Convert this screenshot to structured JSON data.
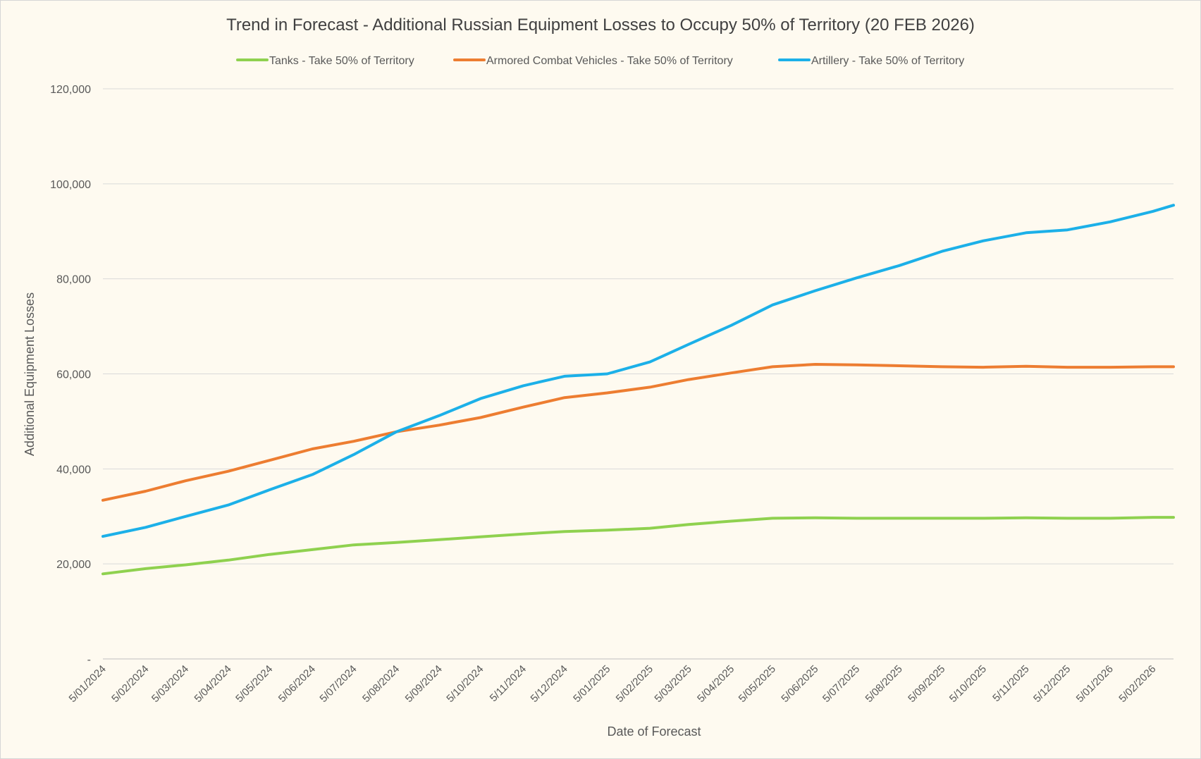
{
  "chart_data": {
    "type": "line",
    "title": "Trend in Forecast - Additional Russian Equipment Losses to Occupy 50% of Territory (20 FEB 2026)",
    "xlabel": "Date of Forecast",
    "ylabel": "Additional Equipment Losses",
    "ylim": [
      0,
      120000
    ],
    "yticks": [
      {
        "value": 0,
        "label": "-"
      },
      {
        "value": 20000,
        "label": "20,000"
      },
      {
        "value": 40000,
        "label": "40,000"
      },
      {
        "value": 60000,
        "label": "60,000"
      },
      {
        "value": 80000,
        "label": "80,000"
      },
      {
        "value": 100000,
        "label": "100,000"
      },
      {
        "value": 120000,
        "label": "120,000"
      }
    ],
    "xlim": [
      "2024-01-05",
      "2026-02-20"
    ],
    "x_tick_labels": [
      "5/01/2024",
      "5/02/2024",
      "5/03/2024",
      "5/04/2024",
      "5/05/2024",
      "5/06/2024",
      "5/07/2024",
      "5/08/2024",
      "5/09/2024",
      "5/10/2024",
      "5/11/2024",
      "5/12/2024",
      "5/01/2025",
      "5/02/2025",
      "5/03/2025",
      "5/04/2025",
      "5/05/2025",
      "5/06/2025",
      "5/07/2025",
      "5/08/2025",
      "5/09/2025",
      "5/10/2025",
      "5/11/2025",
      "5/12/2025",
      "5/01/2026",
      "5/02/2026"
    ],
    "x_tick_dates": [
      "2024-01-05",
      "2024-02-05",
      "2024-03-05",
      "2024-04-05",
      "2024-05-05",
      "2024-06-05",
      "2024-07-05",
      "2024-08-05",
      "2024-09-05",
      "2024-10-05",
      "2024-11-05",
      "2024-12-05",
      "2025-01-05",
      "2025-02-05",
      "2025-03-05",
      "2025-04-05",
      "2025-05-05",
      "2025-06-05",
      "2025-07-05",
      "2025-08-05",
      "2025-09-05",
      "2025-10-05",
      "2025-11-05",
      "2025-12-05",
      "2026-01-05",
      "2026-02-05"
    ],
    "grid": true,
    "legend_position": "top-center",
    "series": [
      {
        "name": "Tanks - Take 50% of Territory",
        "color": "#8fd14f",
        "points": [
          [
            "2024-01-05",
            17900
          ],
          [
            "2024-02-05",
            19000
          ],
          [
            "2024-03-05",
            19800
          ],
          [
            "2024-04-05",
            20800
          ],
          [
            "2024-05-05",
            22000
          ],
          [
            "2024-06-05",
            23000
          ],
          [
            "2024-07-05",
            24000
          ],
          [
            "2024-08-05",
            24500
          ],
          [
            "2024-09-05",
            25100
          ],
          [
            "2024-10-05",
            25700
          ],
          [
            "2024-11-05",
            26300
          ],
          [
            "2024-12-05",
            26800
          ],
          [
            "2025-01-05",
            27100
          ],
          [
            "2025-02-05",
            27500
          ],
          [
            "2025-03-05",
            28300
          ],
          [
            "2025-04-05",
            29000
          ],
          [
            "2025-05-05",
            29600
          ],
          [
            "2025-06-05",
            29700
          ],
          [
            "2025-07-05",
            29600
          ],
          [
            "2025-08-05",
            29600
          ],
          [
            "2025-09-05",
            29600
          ],
          [
            "2025-10-05",
            29600
          ],
          [
            "2025-11-05",
            29700
          ],
          [
            "2025-12-05",
            29600
          ],
          [
            "2026-01-05",
            29600
          ],
          [
            "2026-02-05",
            29800
          ],
          [
            "2026-02-20",
            29800
          ]
        ]
      },
      {
        "name": "Armored Combat Vehicles - Take 50% of Territory",
        "color": "#ed7d31",
        "points": [
          [
            "2024-01-05",
            33400
          ],
          [
            "2024-02-05",
            35300
          ],
          [
            "2024-03-05",
            37500
          ],
          [
            "2024-04-05",
            39500
          ],
          [
            "2024-05-05",
            41800
          ],
          [
            "2024-06-05",
            44200
          ],
          [
            "2024-07-05",
            45800
          ],
          [
            "2024-08-05",
            47800
          ],
          [
            "2024-09-05",
            49200
          ],
          [
            "2024-10-05",
            50800
          ],
          [
            "2024-11-05",
            53000
          ],
          [
            "2024-12-05",
            55000
          ],
          [
            "2025-01-05",
            56000
          ],
          [
            "2025-02-05",
            57200
          ],
          [
            "2025-03-05",
            58800
          ],
          [
            "2025-04-05",
            60200
          ],
          [
            "2025-05-05",
            61500
          ],
          [
            "2025-06-05",
            62000
          ],
          [
            "2025-07-05",
            61900
          ],
          [
            "2025-08-05",
            61700
          ],
          [
            "2025-09-05",
            61500
          ],
          [
            "2025-10-05",
            61400
          ],
          [
            "2025-11-05",
            61600
          ],
          [
            "2025-12-05",
            61400
          ],
          [
            "2026-01-05",
            61400
          ],
          [
            "2026-02-05",
            61500
          ],
          [
            "2026-02-20",
            61500
          ]
        ]
      },
      {
        "name": "Artillery - Take 50% of Territory",
        "color": "#1cb0e8",
        "points": [
          [
            "2024-01-05",
            25800
          ],
          [
            "2024-02-05",
            27700
          ],
          [
            "2024-03-05",
            30000
          ],
          [
            "2024-04-05",
            32400
          ],
          [
            "2024-05-05",
            35600
          ],
          [
            "2024-06-05",
            38800
          ],
          [
            "2024-07-05",
            43000
          ],
          [
            "2024-08-05",
            47800
          ],
          [
            "2024-09-05",
            51200
          ],
          [
            "2024-10-05",
            54800
          ],
          [
            "2024-11-05",
            57500
          ],
          [
            "2024-12-05",
            59500
          ],
          [
            "2025-01-05",
            60000
          ],
          [
            "2025-02-05",
            62500
          ],
          [
            "2025-03-05",
            66200
          ],
          [
            "2025-04-05",
            70200
          ],
          [
            "2025-05-05",
            74500
          ],
          [
            "2025-06-05",
            77500
          ],
          [
            "2025-07-05",
            80200
          ],
          [
            "2025-08-05",
            82800
          ],
          [
            "2025-09-05",
            85800
          ],
          [
            "2025-10-05",
            88000
          ],
          [
            "2025-11-05",
            89700
          ],
          [
            "2025-12-05",
            90300
          ],
          [
            "2026-01-05",
            92000
          ],
          [
            "2026-02-05",
            94200
          ],
          [
            "2026-02-20",
            95500
          ]
        ]
      }
    ]
  }
}
